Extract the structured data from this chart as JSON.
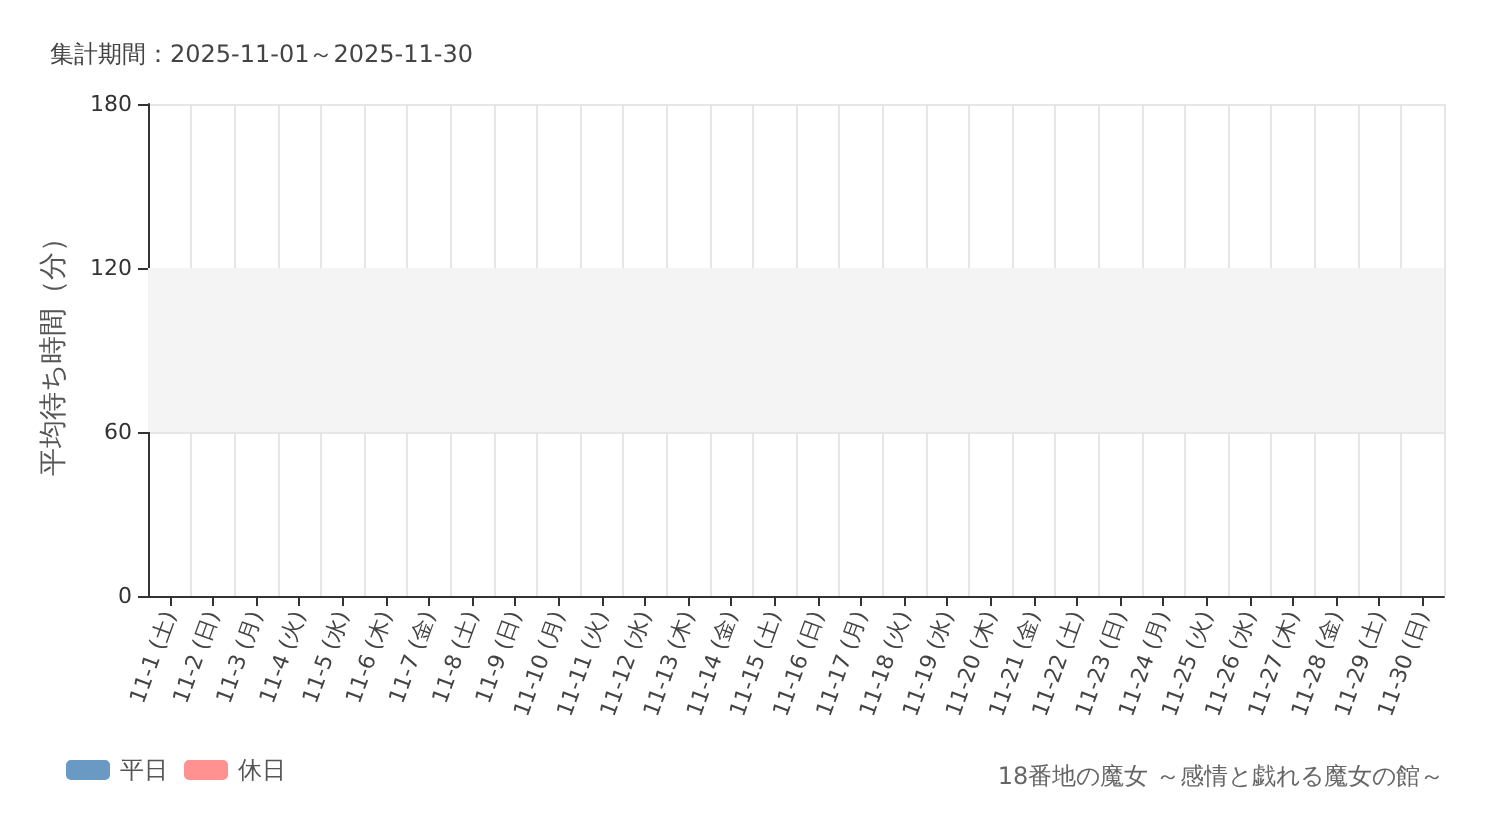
{
  "chart_data": {
    "type": "bar",
    "title": "集計期間：2025-11-01～2025-11-30",
    "ylabel": "平均待ち時間（分）",
    "categories": [
      "11-1 (土)",
      "11-2 (日)",
      "11-3 (月)",
      "11-4 (火)",
      "11-5 (水)",
      "11-6 (木)",
      "11-7 (金)",
      "11-8 (土)",
      "11-9 (日)",
      "11-10 (月)",
      "11-11 (火)",
      "11-12 (水)",
      "11-13 (木)",
      "11-14 (金)",
      "11-15 (土)",
      "11-16 (日)",
      "11-17 (月)",
      "11-18 (火)",
      "11-19 (水)",
      "11-20 (木)",
      "11-21 (金)",
      "11-22 (土)",
      "11-23 (日)",
      "11-24 (月)",
      "11-25 (火)",
      "11-26 (水)",
      "11-27 (木)",
      "11-28 (金)",
      "11-29 (土)",
      "11-30 (日)"
    ],
    "series": [
      {
        "name": "平日",
        "color": "#6a9ac4",
        "values": [
          null,
          null,
          null,
          null,
          null,
          null,
          null,
          null,
          null,
          null,
          null,
          null,
          null,
          null,
          null,
          null,
          null,
          null,
          null,
          null,
          null,
          null,
          null,
          null,
          null,
          null,
          null,
          null,
          null,
          null
        ]
      },
      {
        "name": "休日",
        "color": "#ff9191",
        "values": [
          null,
          null,
          null,
          null,
          null,
          null,
          null,
          null,
          null,
          null,
          null,
          null,
          null,
          null,
          null,
          null,
          null,
          null,
          null,
          null,
          null,
          null,
          null,
          null,
          null,
          null,
          null,
          null,
          null,
          null
        ]
      }
    ],
    "ylim": [
      0,
      180
    ],
    "yticks": [
      0,
      60,
      120,
      180
    ],
    "bands": [
      {
        "axis": "y",
        "from": 60,
        "to": 120,
        "color": "#f4f4f4"
      }
    ],
    "grid": true,
    "legend": "bottom left",
    "annotations": [
      "18番地の魔女 ～感情と戯れる魔女の館～"
    ]
  }
}
